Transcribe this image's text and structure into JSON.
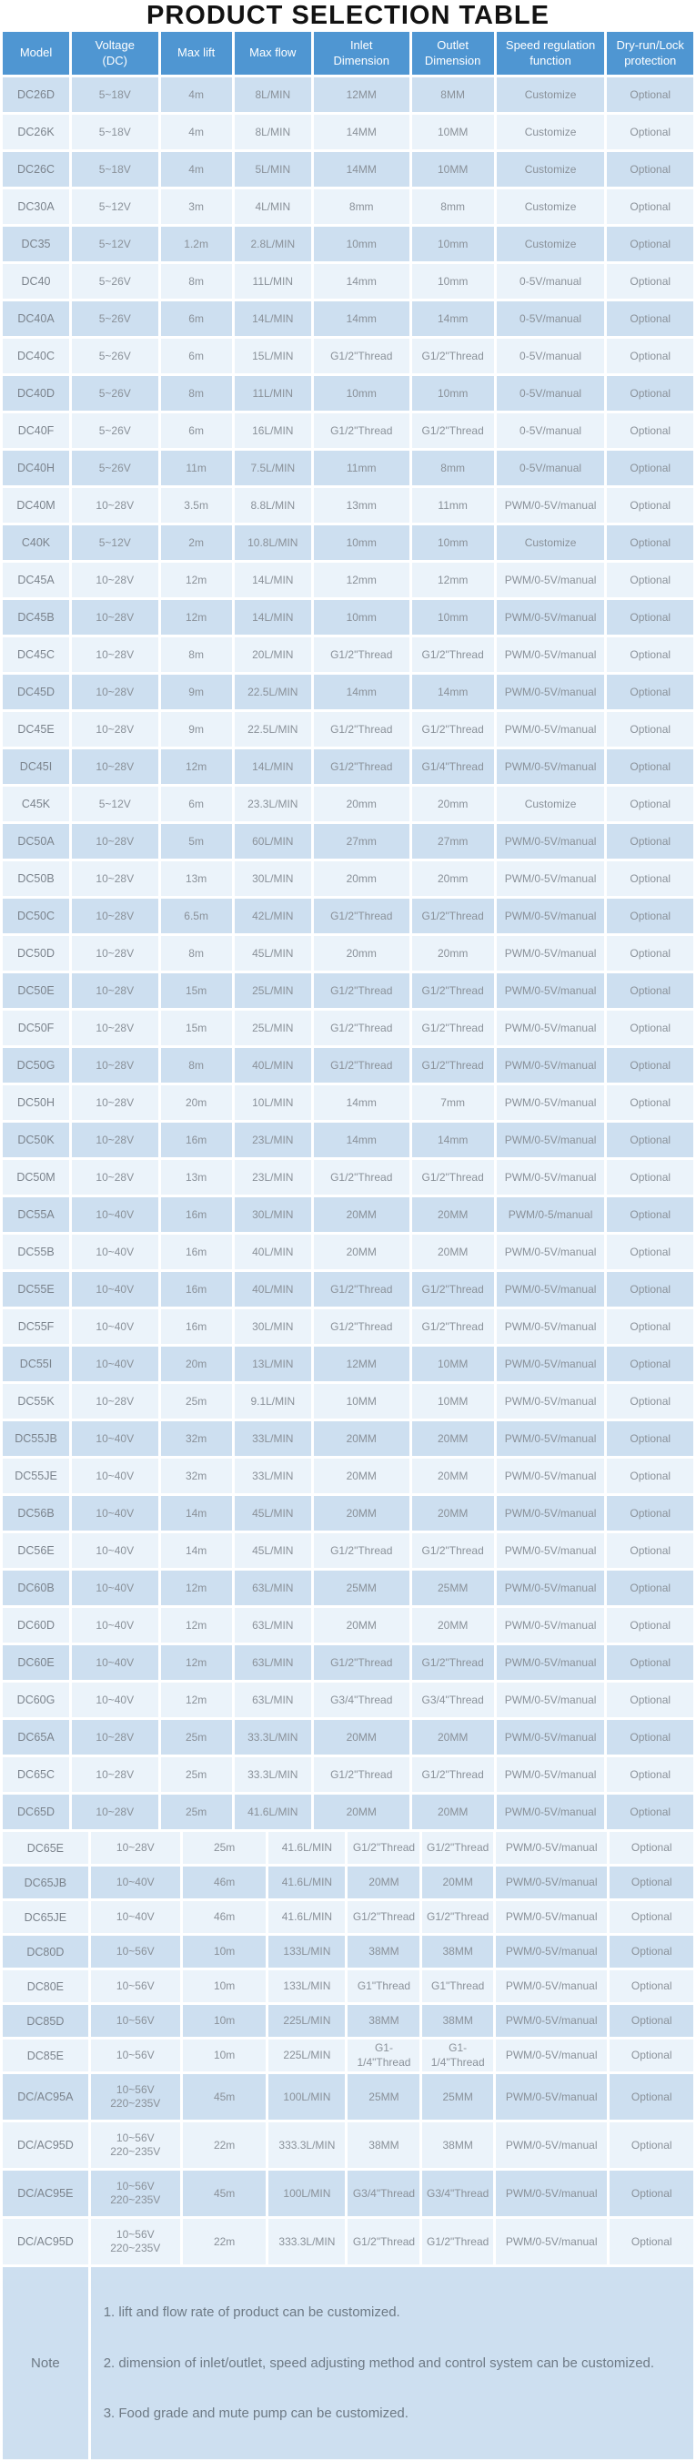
{
  "title": "PRODUCT SELECTION TABLE",
  "colors": {
    "header_bg": "#4f96d2",
    "row_dark": "#cddff0",
    "row_light": "#ebf3fa",
    "cell_text": "#8a9199",
    "header_text": "#ffffff",
    "note_text": "#6e7a85",
    "title_text": "#121212"
  },
  "table": {
    "headers": [
      "Model",
      "Voltage\n(DC)",
      "Max lift",
      "Max flow",
      "Inlet\nDimension",
      "Outlet\nDimension",
      "Speed regulation\nfunction",
      "Dry-run/Lock\nprotection"
    ],
    "column_keys": [
      "model",
      "voltage",
      "max-lift",
      "max-flow",
      "inlet",
      "outlet",
      "speed",
      "protection"
    ],
    "sections": [
      {
        "rows": [
          [
            "DC26D",
            "5~18V",
            "4m",
            "8L/MIN",
            "12MM",
            "8MM",
            "Customize",
            "Optional"
          ],
          [
            "DC26K",
            "5~18V",
            "4m",
            "8L/MIN",
            "14MM",
            "10MM",
            "Customize",
            "Optional"
          ],
          [
            "DC26C",
            "5~18V",
            "4m",
            "5L/MIN",
            "14MM",
            "10MM",
            "Customize",
            "Optional"
          ],
          [
            "DC30A",
            "5~12V",
            "3m",
            "4L/MIN",
            "8mm",
            "8mm",
            "Customize",
            "Optional"
          ],
          [
            "DC35",
            "5~12V",
            "1.2m",
            "2.8L/MIN",
            "10mm",
            "10mm",
            "Customize",
            "Optional"
          ],
          [
            "DC40",
            "5~26V",
            "8m",
            "11L/MIN",
            "14mm",
            "10mm",
            "0-5V/manual",
            "Optional"
          ],
          [
            "DC40A",
            "5~26V",
            "6m",
            "14L/MIN",
            "14mm",
            "14mm",
            "0-5V/manual",
            "Optional"
          ],
          [
            "DC40C",
            "5~26V",
            "6m",
            "15L/MIN",
            "G1/2\"Thread",
            "G1/2\"Thread",
            "0-5V/manual",
            "Optional"
          ],
          [
            "DC40D",
            "5~26V",
            "8m",
            "11L/MIN",
            "10mm",
            "10mm",
            "0-5V/manual",
            "Optional"
          ],
          [
            "DC40F",
            "5~26V",
            "6m",
            "16L/MIN",
            "G1/2\"Thread",
            "G1/2\"Thread",
            "0-5V/manual",
            "Optional"
          ],
          [
            "DC40H",
            "5~26V",
            "11m",
            "7.5L/MIN",
            "11mm",
            "8mm",
            "0-5V/manual",
            "Optional"
          ],
          [
            "DC40M",
            "10~28V",
            "3.5m",
            "8.8L/MIN",
            "13mm",
            "11mm",
            "PWM/0-5V/manual",
            "Optional"
          ],
          [
            "C40K",
            "5~12V",
            "2m",
            "10.8L/MIN",
            "10mm",
            "10mm",
            "Customize",
            "Optional"
          ],
          [
            "DC45A",
            "10~28V",
            "12m",
            "14L/MIN",
            "12mm",
            "12mm",
            "PWM/0-5V/manual",
            "Optional"
          ],
          [
            "DC45B",
            "10~28V",
            "12m",
            "14L/MIN",
            "10mm",
            "10mm",
            "PWM/0-5V/manual",
            "Optional"
          ],
          [
            "DC45C",
            "10~28V",
            "8m",
            "20L/MIN",
            "G1/2\"Thread",
            "G1/2\"Thread",
            "PWM/0-5V/manual",
            "Optional"
          ],
          [
            "DC45D",
            "10~28V",
            "9m",
            "22.5L/MIN",
            "14mm",
            "14mm",
            "PWM/0-5V/manual",
            "Optional"
          ],
          [
            "DC45E",
            "10~28V",
            "9m",
            "22.5L/MIN",
            "G1/2\"Thread",
            "G1/2\"Thread",
            "PWM/0-5V/manual",
            "Optional"
          ],
          [
            "DC45I",
            "10~28V",
            "12m",
            "14L/MIN",
            "G1/2\"Thread",
            "G1/4\"Thread",
            "PWM/0-5V/manual",
            "Optional"
          ],
          [
            "C45K",
            "5~12V",
            "6m",
            "23.3L/MIN",
            "20mm",
            "20mm",
            "Customize",
            "Optional"
          ],
          [
            "DC50A",
            "10~28V",
            "5m",
            "60L/MIN",
            "27mm",
            "27mm",
            "PWM/0-5V/manual",
            "Optional"
          ],
          [
            "DC50B",
            "10~28V",
            "13m",
            "30L/MIN",
            "20mm",
            "20mm",
            "PWM/0-5V/manual",
            "Optional"
          ],
          [
            "DC50C",
            "10~28V",
            "6.5m",
            "42L/MIN",
            "G1/2\"Thread",
            "G1/2\"Thread",
            "PWM/0-5V/manual",
            "Optional"
          ],
          [
            "DC50D",
            "10~28V",
            "8m",
            "45L/MIN",
            "20mm",
            "20mm",
            "PWM/0-5V/manual",
            "Optional"
          ],
          [
            "DC50E",
            "10~28V",
            "15m",
            "25L/MIN",
            "G1/2\"Thread",
            "G1/2\"Thread",
            "PWM/0-5V/manual",
            "Optional"
          ],
          [
            "DC50F",
            "10~28V",
            "15m",
            "25L/MIN",
            "G1/2\"Thread",
            "G1/2\"Thread",
            "PWM/0-5V/manual",
            "Optional"
          ],
          [
            "DC50G",
            "10~28V",
            "8m",
            "40L/MIN",
            "G1/2\"Thread",
            "G1/2\"Thread",
            "PWM/0-5V/manual",
            "Optional"
          ],
          [
            "DC50H",
            "10~28V",
            "20m",
            "10L/MIN",
            "14mm",
            "7mm",
            "PWM/0-5V/manual",
            "Optional"
          ],
          [
            "DC50K",
            "10~28V",
            "16m",
            "23L/MIN",
            "14mm",
            "14mm",
            "PWM/0-5V/manual",
            "Optional"
          ],
          [
            "DC50M",
            "10~28V",
            "13m",
            "23L/MIN",
            "G1/2\"Thread",
            "G1/2\"Thread",
            "PWM/0-5V/manual",
            "Optional"
          ],
          [
            "DC55A",
            "10~40V",
            "16m",
            "30L/MIN",
            "20MM",
            "20MM",
            "PWM/0-5/manual",
            "Optional"
          ],
          [
            "DC55B",
            "10~40V",
            "16m",
            "40L/MIN",
            "20MM",
            "20MM",
            "PWM/0-5V/manual",
            "Optional"
          ],
          [
            "DC55E",
            "10~40V",
            "16m",
            "40L/MIN",
            "G1/2\"Thread",
            "G1/2\"Thread",
            "PWM/0-5V/manual",
            "Optional"
          ],
          [
            "DC55F",
            "10~40V",
            "16m",
            "30L/MIN",
            "G1/2\"Thread",
            "G1/2\"Thread",
            "PWM/0-5V/manual",
            "Optional"
          ],
          [
            "DC55I",
            "10~40V",
            "20m",
            "13L/MIN",
            "12MM",
            "10MM",
            "PWM/0-5V/manual",
            "Optional"
          ],
          [
            "DC55K",
            "10~28V",
            "25m",
            "9.1L/MIN",
            "10MM",
            "10MM",
            "PWM/0-5V/manual",
            "Optional"
          ],
          [
            "DC55JB",
            "10~40V",
            "32m",
            "33L/MIN",
            "20MM",
            "20MM",
            "PWM/0-5V/manual",
            "Optional"
          ],
          [
            "DC55JE",
            "10~40V",
            "32m",
            "33L/MIN",
            "20MM",
            "20MM",
            "PWM/0-5V/manual",
            "Optional"
          ],
          [
            "DC56B",
            "10~40V",
            "14m",
            "45L/MIN",
            "20MM",
            "20MM",
            "PWM/0-5V/manual",
            "Optional"
          ],
          [
            "DC56E",
            "10~40V",
            "14m",
            "45L/MIN",
            "G1/2\"Thread",
            "G1/2\"Thread",
            "PWM/0-5V/manual",
            "Optional"
          ],
          [
            "DC60B",
            "10~40V",
            "12m",
            "63L/MIN",
            "25MM",
            "25MM",
            "PWM/0-5V/manual",
            "Optional"
          ],
          [
            "DC60D",
            "10~40V",
            "12m",
            "63L/MIN",
            "20MM",
            "20MM",
            "PWM/0-5V/manual",
            "Optional"
          ],
          [
            "DC60E",
            "10~40V",
            "12m",
            "63L/MIN",
            "G1/2\"Thread",
            "G1/2\"Thread",
            "PWM/0-5V/manual",
            "Optional"
          ],
          [
            "DC60G",
            "10~40V",
            "12m",
            "63L/MIN",
            "G3/4\"Thread",
            "G3/4\"Thread",
            "PWM/0-5V/manual",
            "Optional"
          ],
          [
            "DC65A",
            "10~28V",
            "25m",
            "33.3L/MIN",
            "20MM",
            "20MM",
            "PWM/0-5V/manual",
            "Optional"
          ],
          [
            "DC65C",
            "10~28V",
            "25m",
            "33.3L/MIN",
            "G1/2\"Thread",
            "G1/2\"Thread",
            "PWM/0-5V/manual",
            "Optional"
          ],
          [
            "DC65D",
            "10~28V",
            "25m",
            "41.6L/MIN",
            "20MM",
            "20MM",
            "PWM/0-5V/manual",
            "Optional"
          ]
        ]
      },
      {
        "rows": [
          [
            "DC65E",
            "10~28V",
            "25m",
            "41.6L/MIN",
            "G1/2\"Thread",
            "G1/2\"Thread",
            "PWM/0-5V/manual",
            "Optional"
          ],
          [
            "DC65JB",
            "10~40V",
            "46m",
            "41.6L/MIN",
            "20MM",
            "20MM",
            "PWM/0-5V/manual",
            "Optional"
          ],
          [
            "DC65JE",
            "10~40V",
            "46m",
            "41.6L/MIN",
            "G1/2\"Thread",
            "G1/2\"Thread",
            "PWM/0-5V/manual",
            "Optional"
          ],
          [
            "DC80D",
            "10~56V",
            "10m",
            "133L/MIN",
            "38MM",
            "38MM",
            "PWM/0-5V/manual",
            "Optional"
          ],
          [
            "DC80E",
            "10~56V",
            "10m",
            "133L/MIN",
            "G1\"Thread",
            "G1\"Thread",
            "PWM/0-5V/manual",
            "Optional"
          ],
          [
            "DC85D",
            "10~56V",
            "10m",
            "225L/MIN",
            "38MM",
            "38MM",
            "PWM/0-5V/manual",
            "Optional"
          ],
          [
            "DC85E",
            "10~56V",
            "10m",
            "225L/MIN",
            "G1-1/4\"Thread",
            "G1-1/4\"Thread",
            "PWM/0-5V/manual",
            "Optional"
          ],
          [
            "DC/AC95A",
            "10~56V\n220~235V",
            "45m",
            "100L/MIN",
            "25MM",
            "25MM",
            "PWM/0-5V/manual",
            "Optional"
          ],
          [
            "DC/AC95D",
            "10~56V\n220~235V",
            "22m",
            "333.3L/MIN",
            "38MM",
            "38MM",
            "PWM/0-5V/manual",
            "Optional"
          ],
          [
            "DC/AC95E",
            "10~56V\n220~235V",
            "45m",
            "100L/MIN",
            "G3/4\"Thread",
            "G3/4\"Thread",
            "PWM/0-5V/manual",
            "Optional"
          ],
          [
            "DC/AC95D",
            "10~56V\n220~235V",
            "22m",
            "333.3L/MIN",
            "G1/2\"Thread",
            "G1/2\"Thread",
            "PWM/0-5V/manual",
            "Optional"
          ]
        ]
      }
    ]
  },
  "note": {
    "label": "Note",
    "lines": [
      "1. lift and flow rate of product can be customized.",
      "2. dimension of inlet/outlet, speed adjusting method and control system can be customized.",
      "3. Food grade and mute pump can be customized."
    ]
  }
}
